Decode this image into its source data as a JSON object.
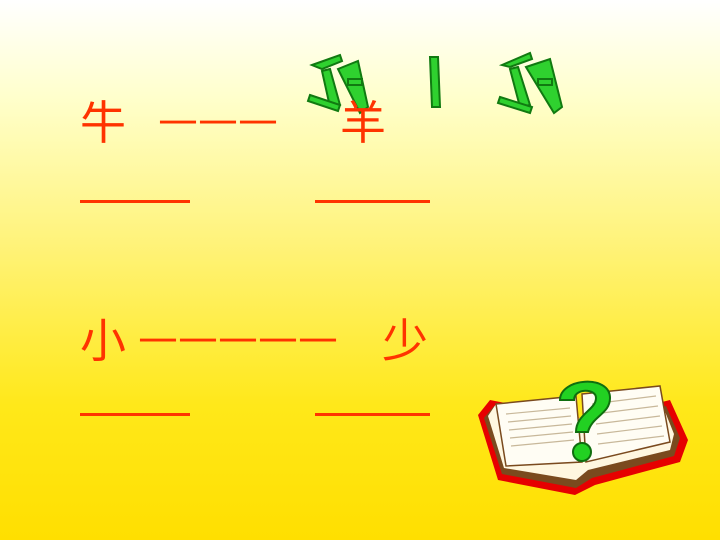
{
  "title": {
    "text": "例题",
    "color": "#1fbf1f"
  },
  "pairs": [
    {
      "left": "牛",
      "right": "羊"
    },
    {
      "left": "小",
      "right": "少"
    }
  ],
  "dash_long_1": "———",
  "dash_long_2": "—————",
  "dash_short": "——",
  "colors": {
    "text": "#ff3300",
    "accent_green": "#33cc33"
  },
  "illustration": {
    "icon": "book-question-icon"
  }
}
